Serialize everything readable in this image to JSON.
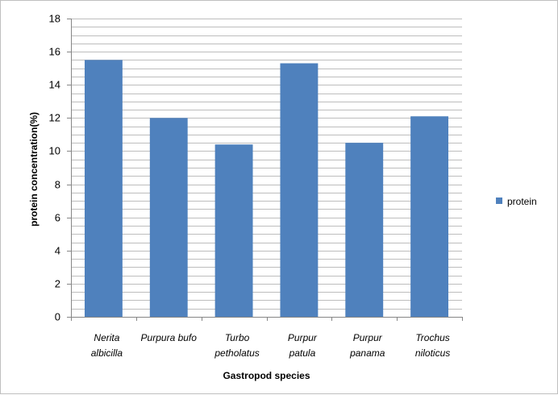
{
  "chart_data": {
    "type": "bar",
    "categories": [
      [
        "Nerita",
        "albicilla"
      ],
      [
        "Purpura bufo"
      ],
      [
        "Turbo",
        "petholatus"
      ],
      [
        "Purpur",
        "patula"
      ],
      [
        "Purpur",
        "panama"
      ],
      [
        "Trochus",
        "niloticus"
      ]
    ],
    "series": [
      {
        "name": "protein",
        "values": [
          15.5,
          12.0,
          10.4,
          15.3,
          10.5,
          12.1
        ],
        "color": "#4f81bd"
      }
    ],
    "title": "",
    "xlabel": "Gastropod species",
    "ylabel": "protein concentration(%)",
    "ylim": [
      0,
      18
    ],
    "yticks": [
      0,
      2,
      4,
      6,
      8,
      10,
      12,
      14,
      16,
      18
    ],
    "grid": true,
    "legend_position": "right"
  }
}
